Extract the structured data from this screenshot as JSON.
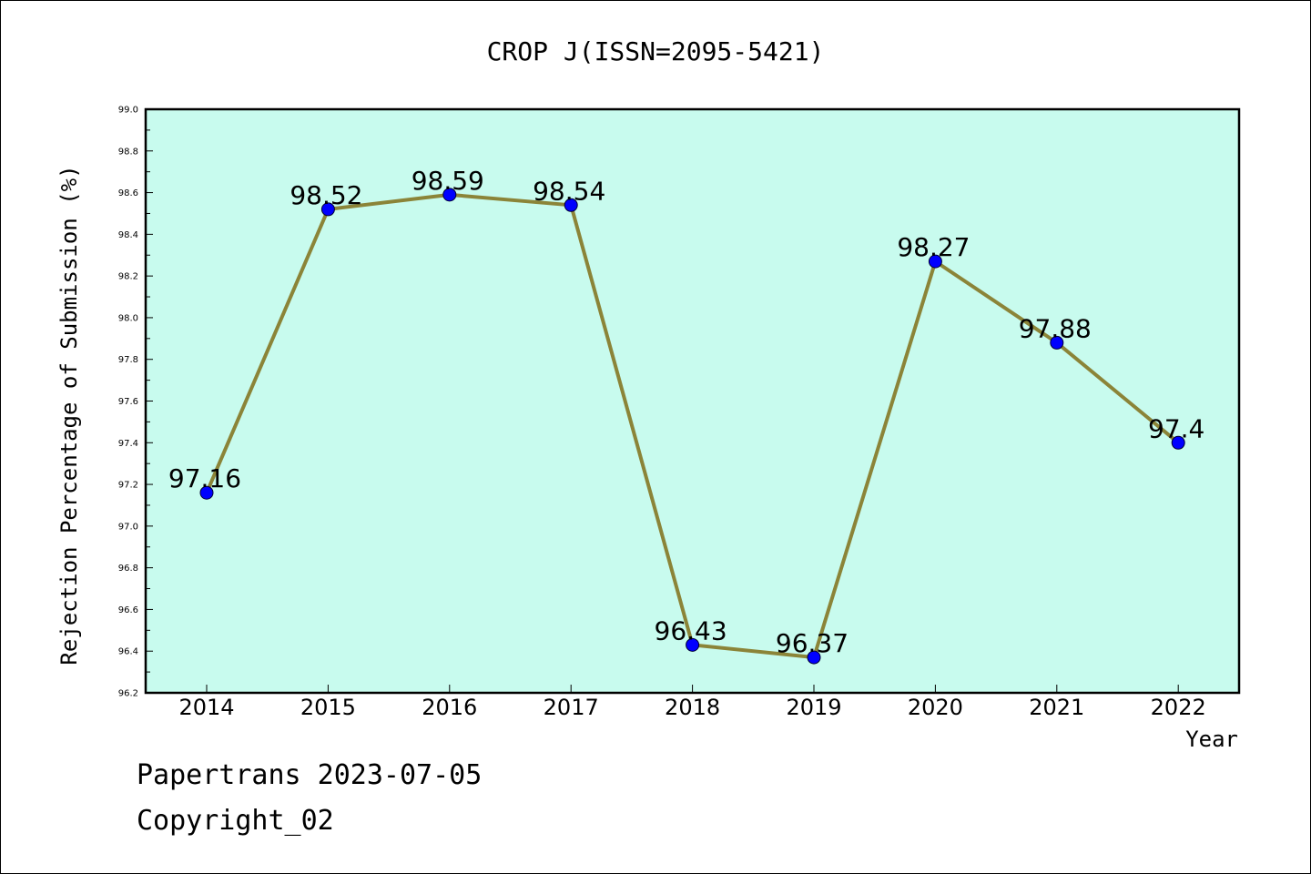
{
  "chart_data": {
    "type": "line",
    "title": "CROP J(ISSN=2095-5421)",
    "xlabel": "Year",
    "ylabel": "Rejection Percentage of Submission (%)",
    "categories": [
      "2014",
      "2015",
      "2016",
      "2017",
      "2018",
      "2019",
      "2020",
      "2021",
      "2022"
    ],
    "values": [
      97.16,
      98.52,
      98.59,
      98.54,
      96.43,
      96.37,
      98.27,
      97.88,
      97.4
    ],
    "data_labels": [
      "97.16",
      "98.52",
      "98.59",
      "98.54",
      "96.43",
      "96.37",
      "98.27",
      "97.88",
      "97.4"
    ],
    "ylim": [
      96.2,
      99.0
    ],
    "y_ticks": [
      "96.2",
      "96.4",
      "96.6",
      "96.8",
      "97.0",
      "97.2",
      "97.4",
      "97.6",
      "97.8",
      "98.0",
      "98.2",
      "98.4",
      "98.6",
      "98.8",
      "99.0"
    ],
    "grid": false,
    "legend": "none",
    "colors": {
      "plot_background": "#c8fbee",
      "line": "#8b8438",
      "marker": "#0000ff"
    }
  },
  "footer": {
    "line1": "Papertrans 2023-07-05",
    "line2": "Copyright_02"
  }
}
